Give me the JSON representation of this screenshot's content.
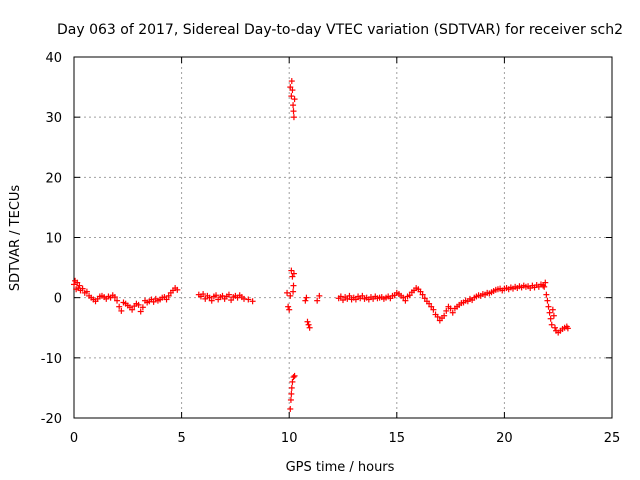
{
  "chart_data": {
    "type": "scatter",
    "title": "Day 063 of 2017, Sidereal Day-to-day VTEC variation (SDTVAR) for receiver sch2",
    "xlabel": "GPS time / hours",
    "ylabel": "SDTVAR / TECUs",
    "xlim": [
      0,
      25
    ],
    "ylim": [
      -20,
      40
    ],
    "xticks": [
      0,
      5,
      10,
      15,
      20,
      25
    ],
    "yticks": [
      -20,
      -10,
      0,
      10,
      20,
      30,
      40
    ],
    "grid": true,
    "marker": "+",
    "series": [
      {
        "name": "SDTVAR",
        "color": "#ff0000",
        "points": [
          [
            0.0,
            2.2
          ],
          [
            0.05,
            2.8
          ],
          [
            0.1,
            1.4
          ],
          [
            0.15,
            2.5
          ],
          [
            0.2,
            1.6
          ],
          [
            0.25,
            2.0
          ],
          [
            0.3,
            1.2
          ],
          [
            0.4,
            1.5
          ],
          [
            0.5,
            0.8
          ],
          [
            0.6,
            1.0
          ],
          [
            0.7,
            0.3
          ],
          [
            0.8,
            0.0
          ],
          [
            0.9,
            -0.3
          ],
          [
            1.0,
            -0.6
          ],
          [
            1.1,
            -0.2
          ],
          [
            1.2,
            0.2
          ],
          [
            1.3,
            0.3
          ],
          [
            1.4,
            0.1
          ],
          [
            1.5,
            -0.2
          ],
          [
            1.6,
            0.2
          ],
          [
            1.7,
            0.0
          ],
          [
            1.8,
            0.4
          ],
          [
            1.9,
            0.1
          ],
          [
            2.0,
            -0.5
          ],
          [
            2.1,
            -1.5
          ],
          [
            2.2,
            -2.2
          ],
          [
            2.3,
            -0.8
          ],
          [
            2.4,
            -1.0
          ],
          [
            2.5,
            -1.3
          ],
          [
            2.6,
            -1.6
          ],
          [
            2.7,
            -2.0
          ],
          [
            2.8,
            -1.4
          ],
          [
            2.9,
            -1.0
          ],
          [
            3.0,
            -1.2
          ],
          [
            3.1,
            -2.3
          ],
          [
            3.2,
            -1.6
          ],
          [
            3.3,
            -0.5
          ],
          [
            3.4,
            -0.8
          ],
          [
            3.5,
            -0.6
          ],
          [
            3.6,
            -0.3
          ],
          [
            3.7,
            -0.7
          ],
          [
            3.8,
            -0.2
          ],
          [
            3.9,
            -0.5
          ],
          [
            4.0,
            -0.3
          ],
          [
            4.1,
            0.0
          ],
          [
            4.2,
            0.1
          ],
          [
            4.3,
            -0.3
          ],
          [
            4.4,
            0.3
          ],
          [
            4.5,
            0.8
          ],
          [
            4.6,
            1.2
          ],
          [
            4.7,
            1.6
          ],
          [
            4.8,
            1.3
          ],
          [
            5.8,
            0.5
          ],
          [
            5.9,
            0.2
          ],
          [
            6.0,
            0.6
          ],
          [
            6.1,
            -0.2
          ],
          [
            6.2,
            0.3
          ],
          [
            6.3,
            0.0
          ],
          [
            6.4,
            -0.5
          ],
          [
            6.5,
            0.2
          ],
          [
            6.6,
            0.4
          ],
          [
            6.7,
            -0.3
          ],
          [
            6.8,
            0.1
          ],
          [
            6.9,
            0.3
          ],
          [
            7.0,
            -0.2
          ],
          [
            7.1,
            0.2
          ],
          [
            7.2,
            0.5
          ],
          [
            7.3,
            -0.4
          ],
          [
            7.4,
            0.1
          ],
          [
            7.5,
            0.3
          ],
          [
            7.6,
            0.0
          ],
          [
            7.7,
            0.4
          ],
          [
            7.8,
            0.1
          ],
          [
            7.9,
            -0.2
          ],
          [
            8.1,
            -0.3
          ],
          [
            8.3,
            -0.6
          ],
          [
            9.9,
            0.8
          ],
          [
            9.95,
            -1.5
          ],
          [
            10.0,
            -2.0
          ],
          [
            10.05,
            0.3
          ],
          [
            10.1,
            4.5
          ],
          [
            10.15,
            3.5
          ],
          [
            10.2,
            2.0
          ],
          [
            10.18,
            1.0
          ],
          [
            10.22,
            4.0
          ],
          [
            10.05,
            35.0
          ],
          [
            10.1,
            33.5
          ],
          [
            10.12,
            36.0
          ],
          [
            10.15,
            34.5
          ],
          [
            10.18,
            32.0
          ],
          [
            10.2,
            31.0
          ],
          [
            10.22,
            30.0
          ],
          [
            10.25,
            33.0
          ],
          [
            10.05,
            -18.5
          ],
          [
            10.08,
            -17.0
          ],
          [
            10.1,
            -16.0
          ],
          [
            10.12,
            -15.0
          ],
          [
            10.15,
            -14.0
          ],
          [
            10.2,
            -13.2
          ],
          [
            10.25,
            -13.0
          ],
          [
            10.75,
            -0.5
          ],
          [
            10.8,
            0.0
          ],
          [
            10.85,
            -4.0
          ],
          [
            10.9,
            -4.5
          ],
          [
            10.95,
            -5.0
          ],
          [
            11.3,
            -0.5
          ],
          [
            11.4,
            0.3
          ],
          [
            12.3,
            -0.1
          ],
          [
            12.4,
            0.2
          ],
          [
            12.5,
            -0.4
          ],
          [
            12.6,
            0.1
          ],
          [
            12.7,
            -0.2
          ],
          [
            12.8,
            0.3
          ],
          [
            12.9,
            -0.3
          ],
          [
            13.0,
            0.0
          ],
          [
            13.1,
            -0.3
          ],
          [
            13.2,
            0.2
          ],
          [
            13.3,
            -0.1
          ],
          [
            13.4,
            0.3
          ],
          [
            13.5,
            -0.2
          ],
          [
            13.6,
            0.0
          ],
          [
            13.7,
            -0.3
          ],
          [
            13.8,
            0.1
          ],
          [
            13.9,
            -0.2
          ],
          [
            14.0,
            0.2
          ],
          [
            14.1,
            -0.1
          ],
          [
            14.2,
            0.0
          ],
          [
            14.3,
            0.1
          ],
          [
            14.4,
            -0.2
          ],
          [
            14.5,
            0.0
          ],
          [
            14.6,
            0.2
          ],
          [
            14.7,
            -0.1
          ],
          [
            14.8,
            0.3
          ],
          [
            14.9,
            0.4
          ],
          [
            15.0,
            0.8
          ],
          [
            15.1,
            0.6
          ],
          [
            15.2,
            0.3
          ],
          [
            15.3,
            0.0
          ],
          [
            15.4,
            -0.5
          ],
          [
            15.5,
            0.2
          ],
          [
            15.6,
            0.4
          ],
          [
            15.7,
            0.9
          ],
          [
            15.8,
            1.2
          ],
          [
            15.9,
            1.6
          ],
          [
            16.0,
            1.4
          ],
          [
            16.1,
            1.0
          ],
          [
            16.2,
            0.5
          ],
          [
            16.3,
            -0.1
          ],
          [
            16.4,
            -0.6
          ],
          [
            16.5,
            -1.0
          ],
          [
            16.6,
            -1.5
          ],
          [
            16.7,
            -2.0
          ],
          [
            16.8,
            -2.8
          ],
          [
            16.9,
            -3.2
          ],
          [
            17.0,
            -3.8
          ],
          [
            17.1,
            -3.4
          ],
          [
            17.2,
            -3.0
          ],
          [
            17.3,
            -2.2
          ],
          [
            17.4,
            -1.5
          ],
          [
            17.5,
            -1.8
          ],
          [
            17.6,
            -2.5
          ],
          [
            17.7,
            -1.8
          ],
          [
            17.8,
            -1.5
          ],
          [
            17.9,
            -1.2
          ],
          [
            18.0,
            -0.9
          ],
          [
            18.1,
            -0.8
          ],
          [
            18.2,
            -0.5
          ],
          [
            18.3,
            -0.6
          ],
          [
            18.4,
            -0.2
          ],
          [
            18.5,
            -0.4
          ],
          [
            18.6,
            0.0
          ],
          [
            18.7,
            0.2
          ],
          [
            18.8,
            0.4
          ],
          [
            18.9,
            0.3
          ],
          [
            19.0,
            0.6
          ],
          [
            19.1,
            0.5
          ],
          [
            19.2,
            0.8
          ],
          [
            19.3,
            0.7
          ],
          [
            19.4,
            0.9
          ],
          [
            19.5,
            1.1
          ],
          [
            19.6,
            1.3
          ],
          [
            19.7,
            1.4
          ],
          [
            19.8,
            1.5
          ],
          [
            19.9,
            1.2
          ],
          [
            20.0,
            1.5
          ],
          [
            20.1,
            1.6
          ],
          [
            20.2,
            1.4
          ],
          [
            20.3,
            1.7
          ],
          [
            20.4,
            1.5
          ],
          [
            20.5,
            1.8
          ],
          [
            20.6,
            1.6
          ],
          [
            20.7,
            1.9
          ],
          [
            20.8,
            1.7
          ],
          [
            20.9,
            2.0
          ],
          [
            21.0,
            1.8
          ],
          [
            21.1,
            1.9
          ],
          [
            21.2,
            1.6
          ],
          [
            21.3,
            2.0
          ],
          [
            21.4,
            1.7
          ],
          [
            21.5,
            2.1
          ],
          [
            21.6,
            1.8
          ],
          [
            21.7,
            2.2
          ],
          [
            21.8,
            2.0
          ],
          [
            21.85,
            1.8
          ],
          [
            21.9,
            2.5
          ],
          [
            21.95,
            0.5
          ],
          [
            22.0,
            -0.5
          ],
          [
            22.05,
            -1.5
          ],
          [
            22.1,
            -2.5
          ],
          [
            22.15,
            -3.5
          ],
          [
            22.2,
            -4.5
          ],
          [
            22.25,
            -2.0
          ],
          [
            22.3,
            -3.0
          ],
          [
            22.35,
            -5.0
          ],
          [
            22.4,
            -5.5
          ],
          [
            22.5,
            -5.8
          ],
          [
            22.6,
            -5.5
          ],
          [
            22.7,
            -5.2
          ],
          [
            22.8,
            -5.0
          ],
          [
            22.9,
            -4.8
          ],
          [
            22.95,
            -5.1
          ]
        ]
      }
    ]
  }
}
